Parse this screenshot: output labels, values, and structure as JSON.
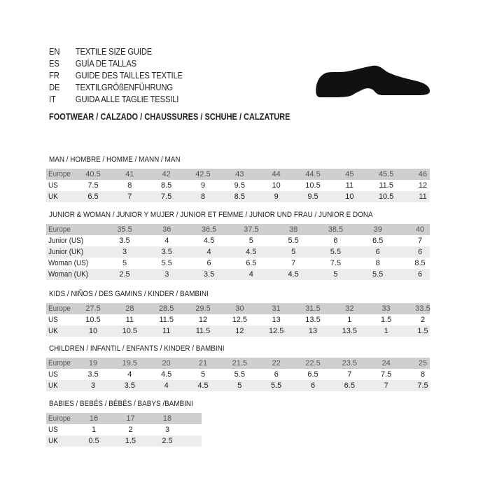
{
  "header": {
    "languages": [
      {
        "code": "EN",
        "text": "TEXTILE SIZE GUIDE"
      },
      {
        "code": "ES",
        "text": "GUÍA DE TALLAS"
      },
      {
        "code": "FR",
        "text": "GUIDE DES TAILLES TEXTILE"
      },
      {
        "code": "DE",
        "text": "TEXTILGRÖßENFÜHRUNG"
      },
      {
        "code": "IT",
        "text": "GUIDA ALLE TAGLIE TESSILI"
      }
    ],
    "footwear_title": "FOOTWEAR / CALZADO / CHAUSSURES / SCHUHE / CALZATURE",
    "icon": "shoe-icon"
  },
  "sections": [
    {
      "title": "MAN / HOMBRE / HOMME / MANN / MAN",
      "rows": [
        {
          "label": "Europe",
          "values": [
            "40.5",
            "41",
            "42",
            "42.5",
            "43",
            "44",
            "44.5",
            "45",
            "45.5",
            "46"
          ]
        },
        {
          "label": "US",
          "values": [
            "7.5",
            "8",
            "8.5",
            "9",
            "9.5",
            "10",
            "10.5",
            "11",
            "11.5",
            "12"
          ]
        },
        {
          "label": "UK",
          "values": [
            "6.5",
            "7",
            "7.5",
            "8",
            "8.5",
            "9",
            "9.5",
            "10",
            "10.5",
            "11"
          ]
        }
      ]
    },
    {
      "title": "JUNIOR & WOMAN / JUNIOR Y MUJER / JUNIOR ET FEMME / JUNIOR UND FRAU / JUNIOR E DONA",
      "rows": [
        {
          "label": "Europe",
          "values": [
            "35.5",
            "36",
            "36.5",
            "37.5",
            "38",
            "38.5",
            "39",
            "40"
          ]
        },
        {
          "label": "Junior (US)",
          "values": [
            "3.5",
            "4",
            "4.5",
            "5",
            "5.5",
            "6",
            "6.5",
            "7"
          ]
        },
        {
          "label": "Junior (UK)",
          "values": [
            "3",
            "3.5",
            "4",
            "4.5",
            "5",
            "5.5",
            "6",
            "6"
          ]
        },
        {
          "label": "Woman (US)",
          "values": [
            "5",
            "5.5",
            "6",
            "6.5",
            "7",
            "7.5",
            "8",
            "8.5"
          ]
        },
        {
          "label": "Woman (UK)",
          "values": [
            "2.5",
            "3",
            "3.5",
            "4",
            "4.5",
            "5",
            "5.5",
            "6"
          ]
        }
      ]
    },
    {
      "title": "KIDS / NIÑOS / DES GAMINS / KINDER / BAMBINI",
      "rows": [
        {
          "label": "Europe",
          "values": [
            "27.5",
            "28",
            "28.5",
            "29.5",
            "30",
            "31",
            "31.5",
            "32",
            "33",
            "33.5"
          ]
        },
        {
          "label": "US",
          "values": [
            "10.5",
            "11",
            "11.5",
            "12",
            "12.5",
            "13",
            "13.5",
            "1",
            "1.5",
            "2"
          ]
        },
        {
          "label": "UK",
          "values": [
            "10",
            "10.5",
            "11",
            "11.5",
            "12",
            "12.5",
            "13",
            "13.5",
            "1",
            "1.5"
          ]
        }
      ]
    },
    {
      "title": "CHILDREN / INFANTIL / ENFANTS / KINDER / BAMBINI",
      "rows": [
        {
          "label": "Europe",
          "values": [
            "19",
            "19.5",
            "20",
            "21",
            "21.5",
            "22",
            "22.5",
            "23.5",
            "24",
            "25"
          ]
        },
        {
          "label": "US",
          "values": [
            "3.5",
            "4",
            "4.5",
            "5",
            "5.5",
            "6",
            "6.5",
            "7",
            "7.5",
            "8"
          ]
        },
        {
          "label": "UK",
          "values": [
            "3",
            "3.5",
            "4",
            "4.5",
            "5",
            "5.5",
            "6",
            "6.5",
            "7",
            "7.5"
          ]
        }
      ]
    },
    {
      "title": "BABIES  / BEBÉS / BÉBÉS / BABYS /BAMBINI",
      "rows": [
        {
          "label": "Europe",
          "values": [
            "16",
            "17",
            "18"
          ]
        },
        {
          "label": "US",
          "values": [
            "1",
            "2",
            "3"
          ]
        },
        {
          "label": "UK",
          "values": [
            "0.5",
            "1.5",
            "2.5"
          ]
        }
      ]
    }
  ]
}
